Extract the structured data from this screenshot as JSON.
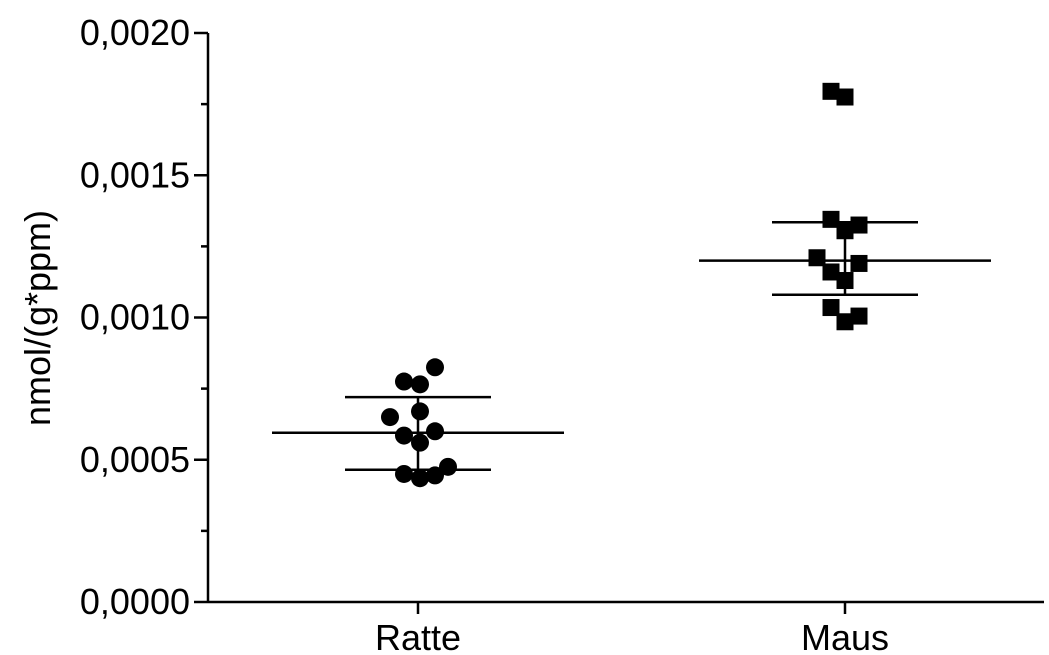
{
  "chart_data": {
    "type": "scatter",
    "ylabel": "nmol/(g*ppm)",
    "xlabel": "",
    "ylim": [
      0,
      0.002
    ],
    "yticks": [
      {
        "value": 0.0,
        "label": "0,0000"
      },
      {
        "value": 0.0005,
        "label": "0,0005"
      },
      {
        "value": 0.001,
        "label": "0,0010"
      },
      {
        "value": 0.0015,
        "label": "0,0015"
      },
      {
        "value": 0.002,
        "label": "0,0020"
      }
    ],
    "categories": [
      "Ratte",
      "Maus"
    ],
    "grid": false,
    "series": [
      {
        "category": "Ratte",
        "marker": "circle",
        "color": "#000000",
        "mean": 0.000595,
        "sd_low": 0.000465,
        "sd_high": 0.00072,
        "points": [
          {
            "offset": -0.28,
            "y": 0.00065
          },
          {
            "offset": -0.14,
            "y": 0.000775
          },
          {
            "offset": 0.02,
            "y": 0.000765
          },
          {
            "offset": 0.17,
            "y": 0.000825
          },
          {
            "offset": -0.14,
            "y": 0.000585
          },
          {
            "offset": 0.02,
            "y": 0.00067
          },
          {
            "offset": 0.02,
            "y": 0.00056
          },
          {
            "offset": 0.17,
            "y": 0.0006
          },
          {
            "offset": -0.14,
            "y": 0.00045
          },
          {
            "offset": 0.02,
            "y": 0.000435
          },
          {
            "offset": 0.17,
            "y": 0.000445
          },
          {
            "offset": 0.3,
            "y": 0.000475
          }
        ]
      },
      {
        "category": "Maus",
        "marker": "square",
        "color": "#000000",
        "mean": 0.0012,
        "sd_low": 0.00108,
        "sd_high": 0.001335,
        "points": [
          {
            "offset": -0.14,
            "y": 0.001795
          },
          {
            "offset": 0.0,
            "y": 0.001775
          },
          {
            "offset": -0.14,
            "y": 0.001345
          },
          {
            "offset": 0.0,
            "y": 0.001305
          },
          {
            "offset": 0.14,
            "y": 0.001325
          },
          {
            "offset": -0.28,
            "y": 0.00121
          },
          {
            "offset": -0.14,
            "y": 0.00116
          },
          {
            "offset": 0.14,
            "y": 0.00119
          },
          {
            "offset": 0.0,
            "y": 0.00113
          },
          {
            "offset": -0.14,
            "y": 0.001035
          },
          {
            "offset": 0.0,
            "y": 0.000985
          },
          {
            "offset": 0.14,
            "y": 0.001005
          }
        ]
      }
    ]
  }
}
